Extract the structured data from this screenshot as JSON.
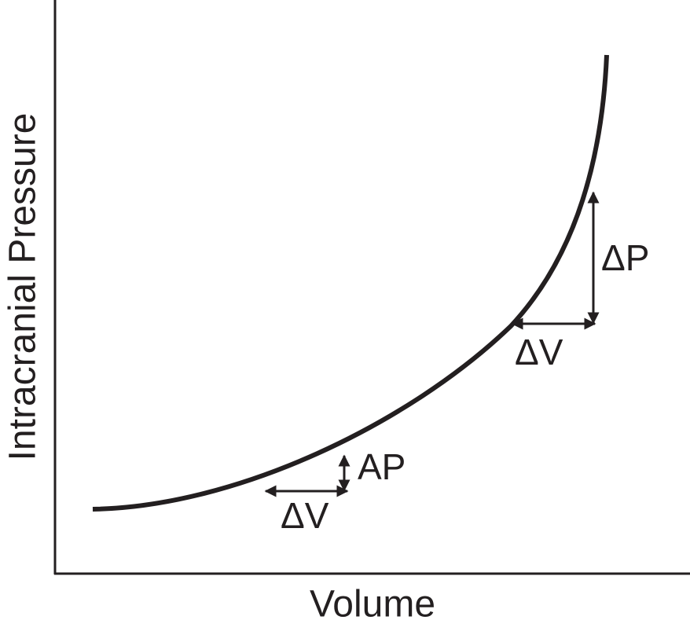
{
  "axes": {
    "x_label": "Volume",
    "y_label": "Intracranial Pressure"
  },
  "annotations": {
    "upper": {
      "pressure_change": "ΔP",
      "volume_change": "ΔV"
    },
    "lower": {
      "pressure_change": "AP",
      "volume_change": "ΔV"
    }
  }
}
